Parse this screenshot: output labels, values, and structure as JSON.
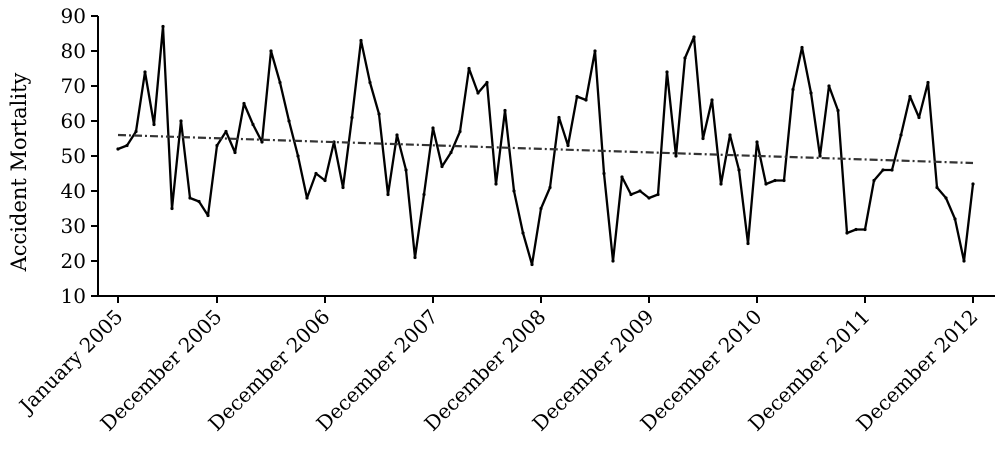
{
  "chart_data": {
    "type": "line",
    "title": "",
    "xlabel": "",
    "ylabel": "Accident Mortality",
    "ylim": [
      10,
      90
    ],
    "yticks": [
      10,
      20,
      30,
      40,
      50,
      60,
      70,
      80,
      90
    ],
    "x_tick_labels": [
      {
        "index": 0,
        "label": "January 2005"
      },
      {
        "index": 11,
        "label": "December 2005"
      },
      {
        "index": 23,
        "label": "December 2006"
      },
      {
        "index": 35,
        "label": "December 2007"
      },
      {
        "index": 47,
        "label": "December 2008"
      },
      {
        "index": 59,
        "label": "December 2009"
      },
      {
        "index": 71,
        "label": "December 2010"
      },
      {
        "index": 83,
        "label": "December 2011"
      },
      {
        "index": 95,
        "label": "December 2012"
      }
    ],
    "grid": false,
    "legend": "none",
    "series": [
      {
        "style": "solid",
        "values": [
          52,
          53,
          57,
          74,
          59,
          87,
          35,
          60,
          38,
          37,
          33,
          53,
          57,
          51,
          65,
          59,
          54,
          80,
          71,
          60,
          50,
          38,
          45,
          43,
          54,
          41,
          61,
          83,
          71,
          62,
          39,
          56,
          46,
          21,
          39,
          58,
          47,
          51,
          57,
          75,
          68,
          71,
          42,
          63,
          40,
          28,
          19,
          35,
          41,
          61,
          53,
          67,
          66,
          80,
          45,
          20,
          44,
          39,
          40,
          38,
          39,
          74,
          50,
          78,
          84,
          55,
          66,
          42,
          56,
          46,
          25,
          54,
          42,
          43,
          43,
          69,
          81,
          68,
          50,
          70,
          63,
          28,
          29,
          29,
          43,
          46,
          46,
          56,
          67,
          61,
          71,
          41,
          38,
          32,
          20,
          42
        ]
      },
      {
        "style": "dash-dot",
        "values": [
          56,
          48
        ]
      }
    ]
  }
}
